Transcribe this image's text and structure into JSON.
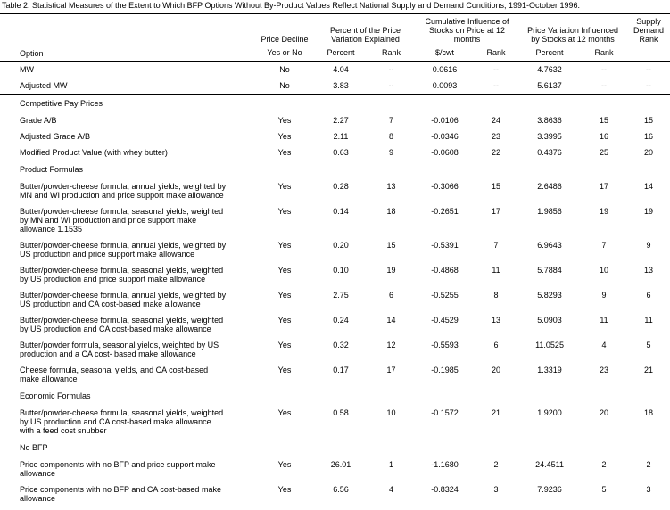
{
  "title": "Table 2: Statistical Measures of the Extent to Which BFP Options Without By-Product Values Reflect National Supply and Demand Conditions, 1991-October 1996.",
  "table": {
    "header": [
      {
        "label": "Option"
      },
      {
        "label": "Price Decline",
        "subs": [
          "Yes or No"
        ]
      },
      {
        "label": "Percent of the Price Variation Explained",
        "subs": [
          "Percent",
          "Rank"
        ]
      },
      {
        "label": "Cumulative Influence of Stocks on Price at 12 months",
        "subs": [
          "$/cwt",
          "Rank"
        ]
      },
      {
        "label": "Price Variation Influenced by Stocks at 12 months",
        "subs": [
          "Percent",
          "Rank"
        ]
      },
      {
        "label": "Supply Demand Rank"
      }
    ],
    "rows": [
      {
        "option": "MW",
        "values": [
          "No",
          "4.04",
          "--",
          "0.0616",
          "--",
          "4.7632",
          "--",
          "--"
        ]
      },
      {
        "option": "Adjusted MW",
        "values": [
          "No",
          "3.83",
          "--",
          "0.0093",
          "--",
          "5.6137",
          "--",
          "--"
        ]
      },
      {
        "section": "Competitive Pay Prices"
      },
      {
        "option": "Grade A/B",
        "values": [
          "Yes",
          "2.27",
          "7",
          "-0.0106",
          "24",
          "3.8636",
          "15",
          "15"
        ]
      },
      {
        "option": "Adjusted Grade A/B",
        "values": [
          "Yes",
          "2.11",
          "8",
          "-0.0346",
          "23",
          "3.3995",
          "16",
          "16"
        ]
      },
      {
        "option": "Modified Product Value (with whey butter)",
        "values": [
          "Yes",
          "0.63",
          "9",
          "-0.0608",
          "22",
          "0.4376",
          "25",
          "20"
        ]
      },
      {
        "section": "Product Formulas"
      },
      {
        "option": "Butter/powder-cheese formula, annual yields, weighted by MN and WI production and price support make allowance",
        "values": [
          "Yes",
          "0.28",
          "13",
          "-0.3066",
          "15",
          "2.6486",
          "17",
          "14"
        ]
      },
      {
        "option": "Butter/powder-cheese formula, seasonal yields, weighted by MN and WI production and price support make allowance 1.1535",
        "values": [
          "Yes",
          "0.14",
          "18",
          "-0.2651",
          "17",
          "1.9856",
          "19",
          "19"
        ]
      },
      {
        "option": "Butter/powder-cheese formula, annual yields, weighted by US production and price support make allowance",
        "values": [
          "Yes",
          "0.20",
          "15",
          "-0.5391",
          "7",
          "6.9643",
          "7",
          "9"
        ]
      },
      {
        "option": "Butter/powder-cheese formula, seasonal yields, weighted by US production and price support make allowance",
        "values": [
          "Yes",
          "0.10",
          "19",
          "-0.4868",
          "11",
          "5.7884",
          "10",
          "13"
        ]
      },
      {
        "option": "Butter/powder-cheese formula, annual yields, weighted by US production and CA cost-based make allowance",
        "values": [
          "Yes",
          "2.75",
          "6",
          "-0.5255",
          "8",
          "5.8293",
          "9",
          "6"
        ]
      },
      {
        "option": "Butter/powder-cheese formula, seasonal yields, weighted by US production and CA cost-based make allowance",
        "values": [
          "Yes",
          "0.24",
          "14",
          "-0.4529",
          "13",
          "5.0903",
          "11",
          "11"
        ]
      },
      {
        "option": "Butter/powder formula, seasonal yields, weighted by US production and a CA cost- based make allowance",
        "values": [
          "Yes",
          "0.32",
          "12",
          "-0.5593",
          "6",
          "11.0525",
          "4",
          "5"
        ]
      },
      {
        "option": "Cheese formula, seasonal yields, and CA cost-based make allowance",
        "values": [
          "Yes",
          "0.17",
          "17",
          "-0.1985",
          "20",
          "1.3319",
          "23",
          "21"
        ]
      },
      {
        "section": "Economic Formulas"
      },
      {
        "option": "Butter/powder-cheese formula, seasonal yields, weighted by US production and CA cost-based make allowance with a feed cost snubber",
        "values": [
          "Yes",
          "0.58",
          "10",
          "-0.1572",
          "21",
          "1.9200",
          "20",
          "18"
        ]
      },
      {
        "section": "No BFP"
      },
      {
        "option": "Price components with no BFP and price support make allowance",
        "values": [
          "Yes",
          "26.01",
          "1",
          "-1.1680",
          "2",
          "24.4511",
          "2",
          "2"
        ]
      },
      {
        "option": "Price components with no BFP and CA cost-based make allowance",
        "values": [
          "Yes",
          "6.56",
          "4",
          "-0.8324",
          "3",
          "7.9236",
          "5",
          "3"
        ]
      }
    ]
  }
}
